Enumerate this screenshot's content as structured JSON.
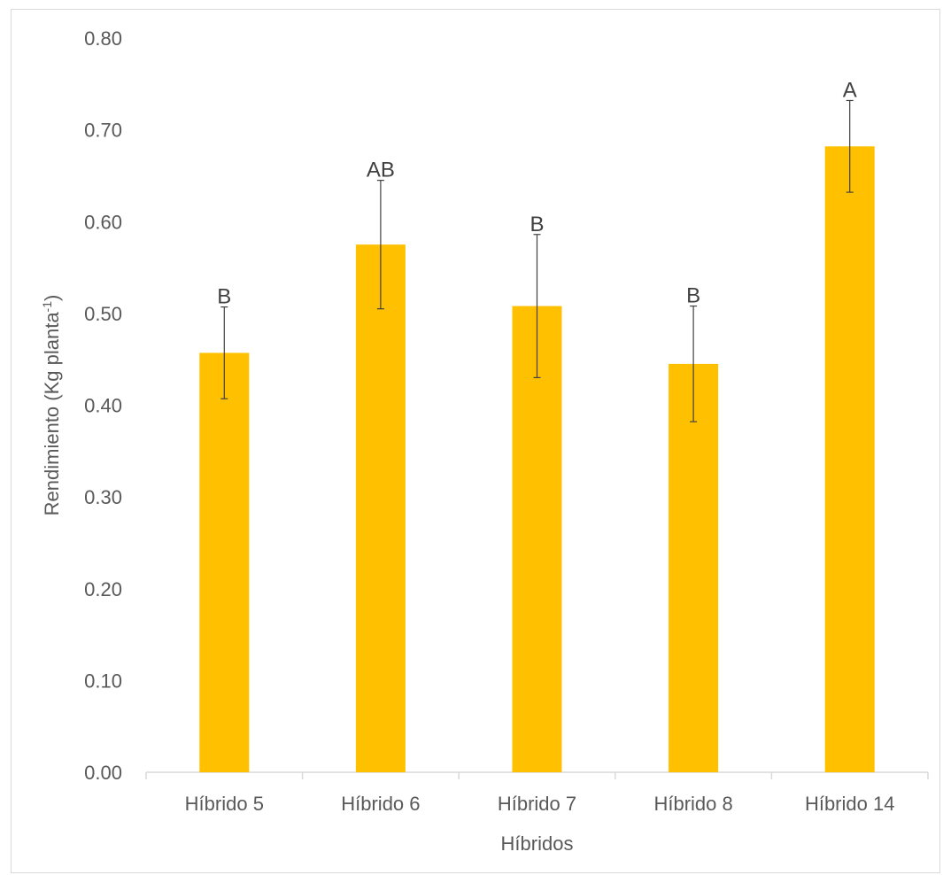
{
  "chart_data": {
    "type": "bar",
    "title": "",
    "xlabel": "Híbridos",
    "ylabel": {
      "main": "Rendimiento (Kg planta",
      "superscript": "-1",
      "close": ")"
    },
    "ylim": [
      0,
      0.8
    ],
    "yticks": [
      "0.00",
      "0.10",
      "0.20",
      "0.30",
      "0.40",
      "0.50",
      "0.60",
      "0.70",
      "0.80"
    ],
    "grid": false,
    "legend": "none",
    "categories": [
      "Híbrido 5",
      "Híbrido 6",
      "Híbrido 7",
      "Híbrido 8",
      "Híbrido 14"
    ],
    "values": [
      0.457,
      0.575,
      0.508,
      0.445,
      0.682
    ],
    "error": [
      0.05,
      0.07,
      0.078,
      0.063,
      0.05
    ],
    "significance_labels": [
      "B",
      "AB",
      "B",
      "B",
      "A"
    ],
    "colors": {
      "bar": "#FFC000",
      "error_bar": "#404040",
      "axis": "#d9d9d9"
    }
  }
}
